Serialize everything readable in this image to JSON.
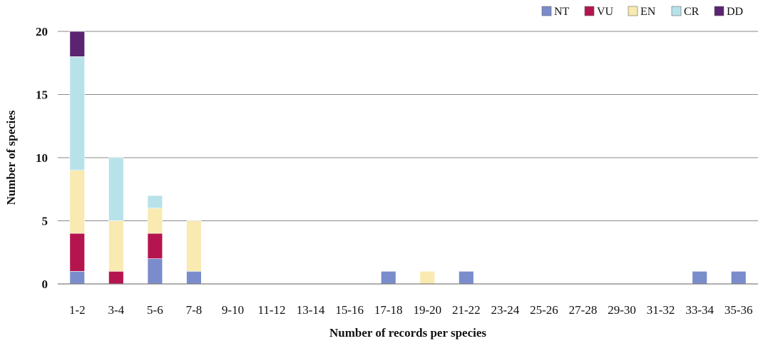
{
  "chart_data": {
    "type": "bar",
    "stacked": true,
    "xlabel": "Number of records per species",
    "ylabel": "Number of species",
    "ylim": [
      0,
      20
    ],
    "yticks": [
      0,
      5,
      10,
      15,
      20
    ],
    "grid": true,
    "legend_position": "top-right",
    "categories": [
      "1-2",
      "3-4",
      "5-6",
      "7-8",
      "9-10",
      "11-12",
      "13-14",
      "15-16",
      "17-18",
      "19-20",
      "21-22",
      "23-24",
      "25-26",
      "27-28",
      "29-30",
      "31-32",
      "33-34",
      "35-36"
    ],
    "series": [
      {
        "name": "NT",
        "color": "#7b8ccc",
        "values": [
          1,
          0,
          2,
          1,
          0,
          0,
          0,
          0,
          1,
          0,
          1,
          0,
          0,
          0,
          0,
          0,
          1,
          1
        ]
      },
      {
        "name": "VU",
        "color": "#b5154f",
        "values": [
          3,
          1,
          2,
          0,
          0,
          0,
          0,
          0,
          0,
          0,
          0,
          0,
          0,
          0,
          0,
          0,
          0,
          0
        ]
      },
      {
        "name": "EN",
        "color": "#f8eab0",
        "values": [
          5,
          4,
          2,
          4,
          0,
          0,
          0,
          0,
          0,
          1,
          0,
          0,
          0,
          0,
          0,
          0,
          0,
          0
        ]
      },
      {
        "name": "CR",
        "color": "#b8e2ea",
        "values": [
          9,
          5,
          1,
          0,
          0,
          0,
          0,
          0,
          0,
          0,
          0,
          0,
          0,
          0,
          0,
          0,
          0,
          0
        ]
      },
      {
        "name": "DD",
        "color": "#5a2472",
        "values": [
          2,
          0,
          0,
          0,
          0,
          0,
          0,
          0,
          0,
          0,
          0,
          0,
          0,
          0,
          0,
          0,
          0,
          0
        ]
      }
    ]
  }
}
